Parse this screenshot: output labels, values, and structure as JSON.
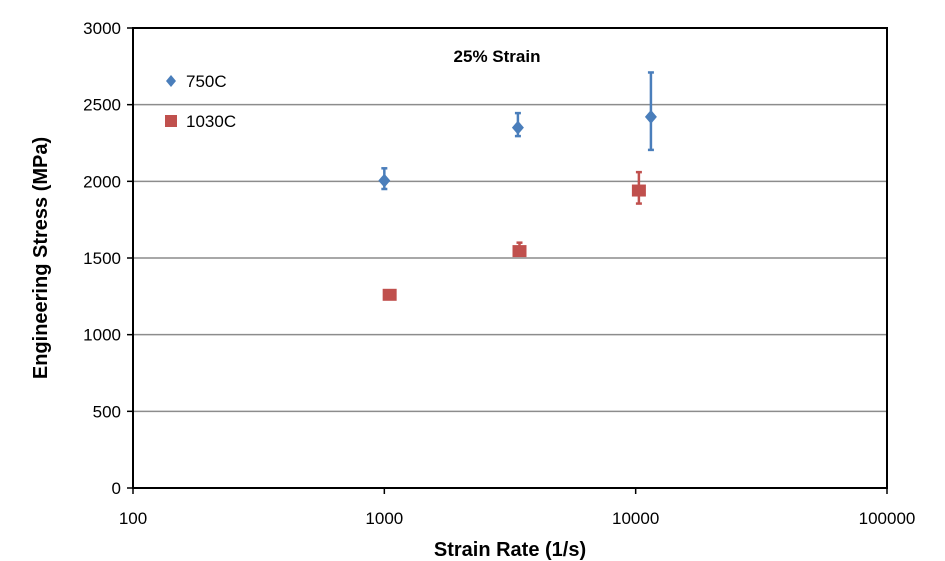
{
  "chart_data": {
    "type": "scatter",
    "title": "25% Strain",
    "xlabel": "Strain Rate (1/s)",
    "ylabel": "Engineering Stress (MPa)",
    "xscale": "log",
    "xlim": [
      100,
      100000
    ],
    "ylim": [
      0,
      3000
    ],
    "xticks": [
      100,
      1000,
      10000,
      100000
    ],
    "xtick_labels": [
      "100",
      "1000",
      "10000",
      "100000"
    ],
    "yticks": [
      0,
      500,
      1000,
      1500,
      2000,
      2500,
      3000
    ],
    "ytick_labels": [
      "0",
      "500",
      "1000",
      "1500",
      "2000",
      "2500",
      "3000"
    ],
    "grid": "horizontal major gridlines",
    "legend_position": "top-left inside plot",
    "series": [
      {
        "name": "750C",
        "marker": "diamond",
        "color": "#4a7ebb",
        "points": [
          {
            "x": 1000,
            "y": 2005,
            "err_low": 55,
            "err_high": 80
          },
          {
            "x": 3400,
            "y": 2350,
            "err_low": 55,
            "err_high": 95
          },
          {
            "x": 11500,
            "y": 2420,
            "err_low": 215,
            "err_high": 290
          }
        ]
      },
      {
        "name": "1030C",
        "marker": "square",
        "color": "#c0504d",
        "points": [
          {
            "x": 1050,
            "y": 1260,
            "err_low": 0,
            "err_high": 0
          },
          {
            "x": 3450,
            "y": 1545,
            "err_low": 20,
            "err_high": 55
          },
          {
            "x": 10300,
            "y": 1940,
            "err_low": 85,
            "err_high": 120
          }
        ]
      }
    ]
  }
}
